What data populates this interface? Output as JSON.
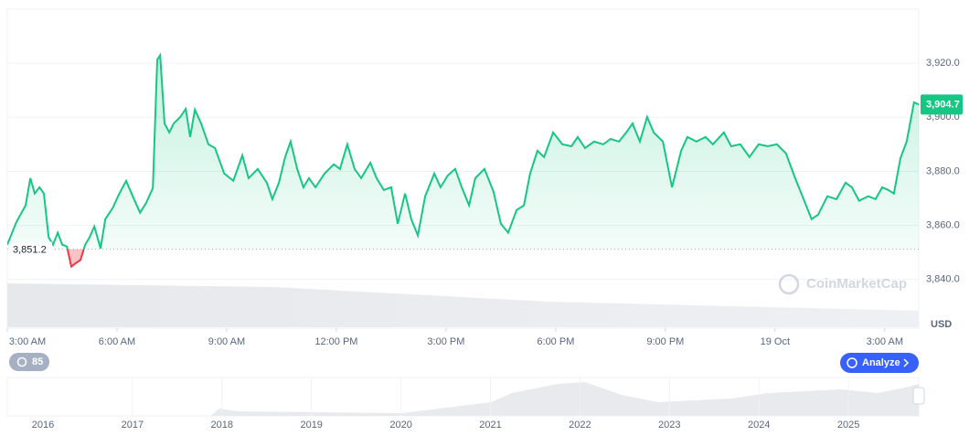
{
  "chart_data": {
    "type": "line",
    "x": [
      3.0,
      3.25,
      3.5,
      3.63,
      3.75,
      3.88,
      4.0,
      4.13,
      4.25,
      4.38,
      4.5,
      4.63,
      4.75,
      4.88,
      5.0,
      5.13,
      5.25,
      5.38,
      5.55,
      5.68,
      5.88,
      6.05,
      6.25,
      6.43,
      6.63,
      6.8,
      6.98,
      7.1,
      7.18,
      7.3,
      7.43,
      7.55,
      7.73,
      7.88,
      8.0,
      8.13,
      8.3,
      8.5,
      8.68,
      8.93,
      9.18,
      9.43,
      9.6,
      9.85,
      10.1,
      10.25,
      10.43,
      10.6,
      10.75,
      10.93,
      11.1,
      11.25,
      11.43,
      11.68,
      11.93,
      12.1,
      12.3,
      12.5,
      12.68,
      12.93,
      13.1,
      13.3,
      13.5,
      13.68,
      13.88,
      14.05,
      14.23,
      14.43,
      14.68,
      14.85,
      15.05,
      15.25,
      15.43,
      15.63,
      15.8,
      16.05,
      16.3,
      16.5,
      16.7,
      16.93,
      17.13,
      17.3,
      17.5,
      17.68,
      17.93,
      18.18,
      18.43,
      18.6,
      18.8,
      19.05,
      19.3,
      19.5,
      19.73,
      19.93,
      20.1,
      20.3,
      20.5,
      20.68,
      20.93,
      21.18,
      21.43,
      21.6,
      21.85,
      22.1,
      22.3,
      22.6,
      22.8,
      23.05,
      23.3,
      23.55,
      23.8,
      24.05,
      24.3,
      24.55,
      24.8,
      25.0,
      25.18,
      25.43,
      25.68,
      25.93,
      26.1,
      26.3,
      26.55,
      26.75,
      26.93,
      27.1,
      27.25,
      27.43,
      27.6,
      27.8,
      27.93
    ],
    "values": [
      3852.9,
      3861.3,
      3867.4,
      3877.5,
      3871.8,
      3874.1,
      3871.8,
      3855.6,
      3852.9,
      3857.3,
      3852.9,
      3852.2,
      3844.8,
      3846.1,
      3847.2,
      3852.9,
      3855.6,
      3859.6,
      3851.5,
      3862.3,
      3866.4,
      3871.4,
      3876.5,
      3870.8,
      3864.7,
      3868.4,
      3873.8,
      3921.3,
      3923.0,
      3897.7,
      3894.4,
      3897.7,
      3900.1,
      3903.1,
      3892.7,
      3902.8,
      3897.7,
      3890.0,
      3888.6,
      3879.2,
      3876.5,
      3885.9,
      3877.5,
      3880.9,
      3875.8,
      3869.7,
      3875.8,
      3885.3,
      3891.0,
      3880.9,
      3874.1,
      3877.5,
      3874.1,
      3879.2,
      3882.6,
      3880.9,
      3890.0,
      3880.9,
      3877.5,
      3883.2,
      3877.5,
      3873.1,
      3874.1,
      3860.6,
      3871.8,
      3862.3,
      3856.3,
      3870.8,
      3879.2,
      3874.1,
      3878.5,
      3880.9,
      3874.1,
      3867.4,
      3877.5,
      3880.9,
      3872.4,
      3860.6,
      3857.3,
      3865.7,
      3867.4,
      3879.2,
      3887.6,
      3885.3,
      3894.4,
      3890.0,
      3889.3,
      3892.7,
      3888.6,
      3891.0,
      3890.0,
      3892.0,
      3891.0,
      3894.4,
      3897.7,
      3891.0,
      3900.1,
      3894.4,
      3891.0,
      3874.1,
      3887.6,
      3892.7,
      3891.0,
      3892.7,
      3890.0,
      3894.4,
      3889.3,
      3890.0,
      3885.3,
      3890.0,
      3889.3,
      3890.0,
      3886.6,
      3877.5,
      3869.1,
      3862.3,
      3864.0,
      3870.8,
      3869.7,
      3875.8,
      3874.1,
      3869.1,
      3870.8,
      3869.7,
      3874.1,
      3873.1,
      3871.8,
      3884.9,
      3891.0,
      3905.5,
      3904.7
    ],
    "color": "#16c784",
    "down_color": "#ea3943",
    "xlim": [
      3,
      27.93
    ],
    "xticks": [
      {
        "value": 3,
        "label": "3:00 AM"
      },
      {
        "value": 6,
        "label": "6:00 AM"
      },
      {
        "value": 9,
        "label": "9:00 AM"
      },
      {
        "value": 12,
        "label": "12:00 PM"
      },
      {
        "value": 15,
        "label": "3:00 PM"
      },
      {
        "value": 18,
        "label": "6:00 PM"
      },
      {
        "value": 21,
        "label": "9:00 PM"
      },
      {
        "value": 24,
        "label": "19 Oct"
      },
      {
        "value": 27,
        "label": "3:00 AM"
      }
    ],
    "ylim": [
      3822,
      3940
    ],
    "yticks": [
      {
        "value": 3840,
        "label": "3,840.0"
      },
      {
        "value": 3860,
        "label": "3,860.0"
      },
      {
        "value": 3880,
        "label": "3,880.0"
      },
      {
        "value": 3900,
        "label": "3,900.0"
      },
      {
        "value": 3920,
        "label": "3,920.0"
      }
    ],
    "grid": true,
    "baseline": {
      "value": 3851.2,
      "label": "3,851.2"
    },
    "current_price": {
      "value": 3904.7,
      "label": "3,904.7"
    },
    "y_label": "USD",
    "watermark": "CoinMarketCap"
  },
  "navigator": {
    "years": [
      2016,
      2017,
      2018,
      2019,
      2020,
      2021,
      2022,
      2023,
      2024,
      2025
    ]
  },
  "controls": {
    "history_count": "85",
    "analyze": "Analyze"
  }
}
